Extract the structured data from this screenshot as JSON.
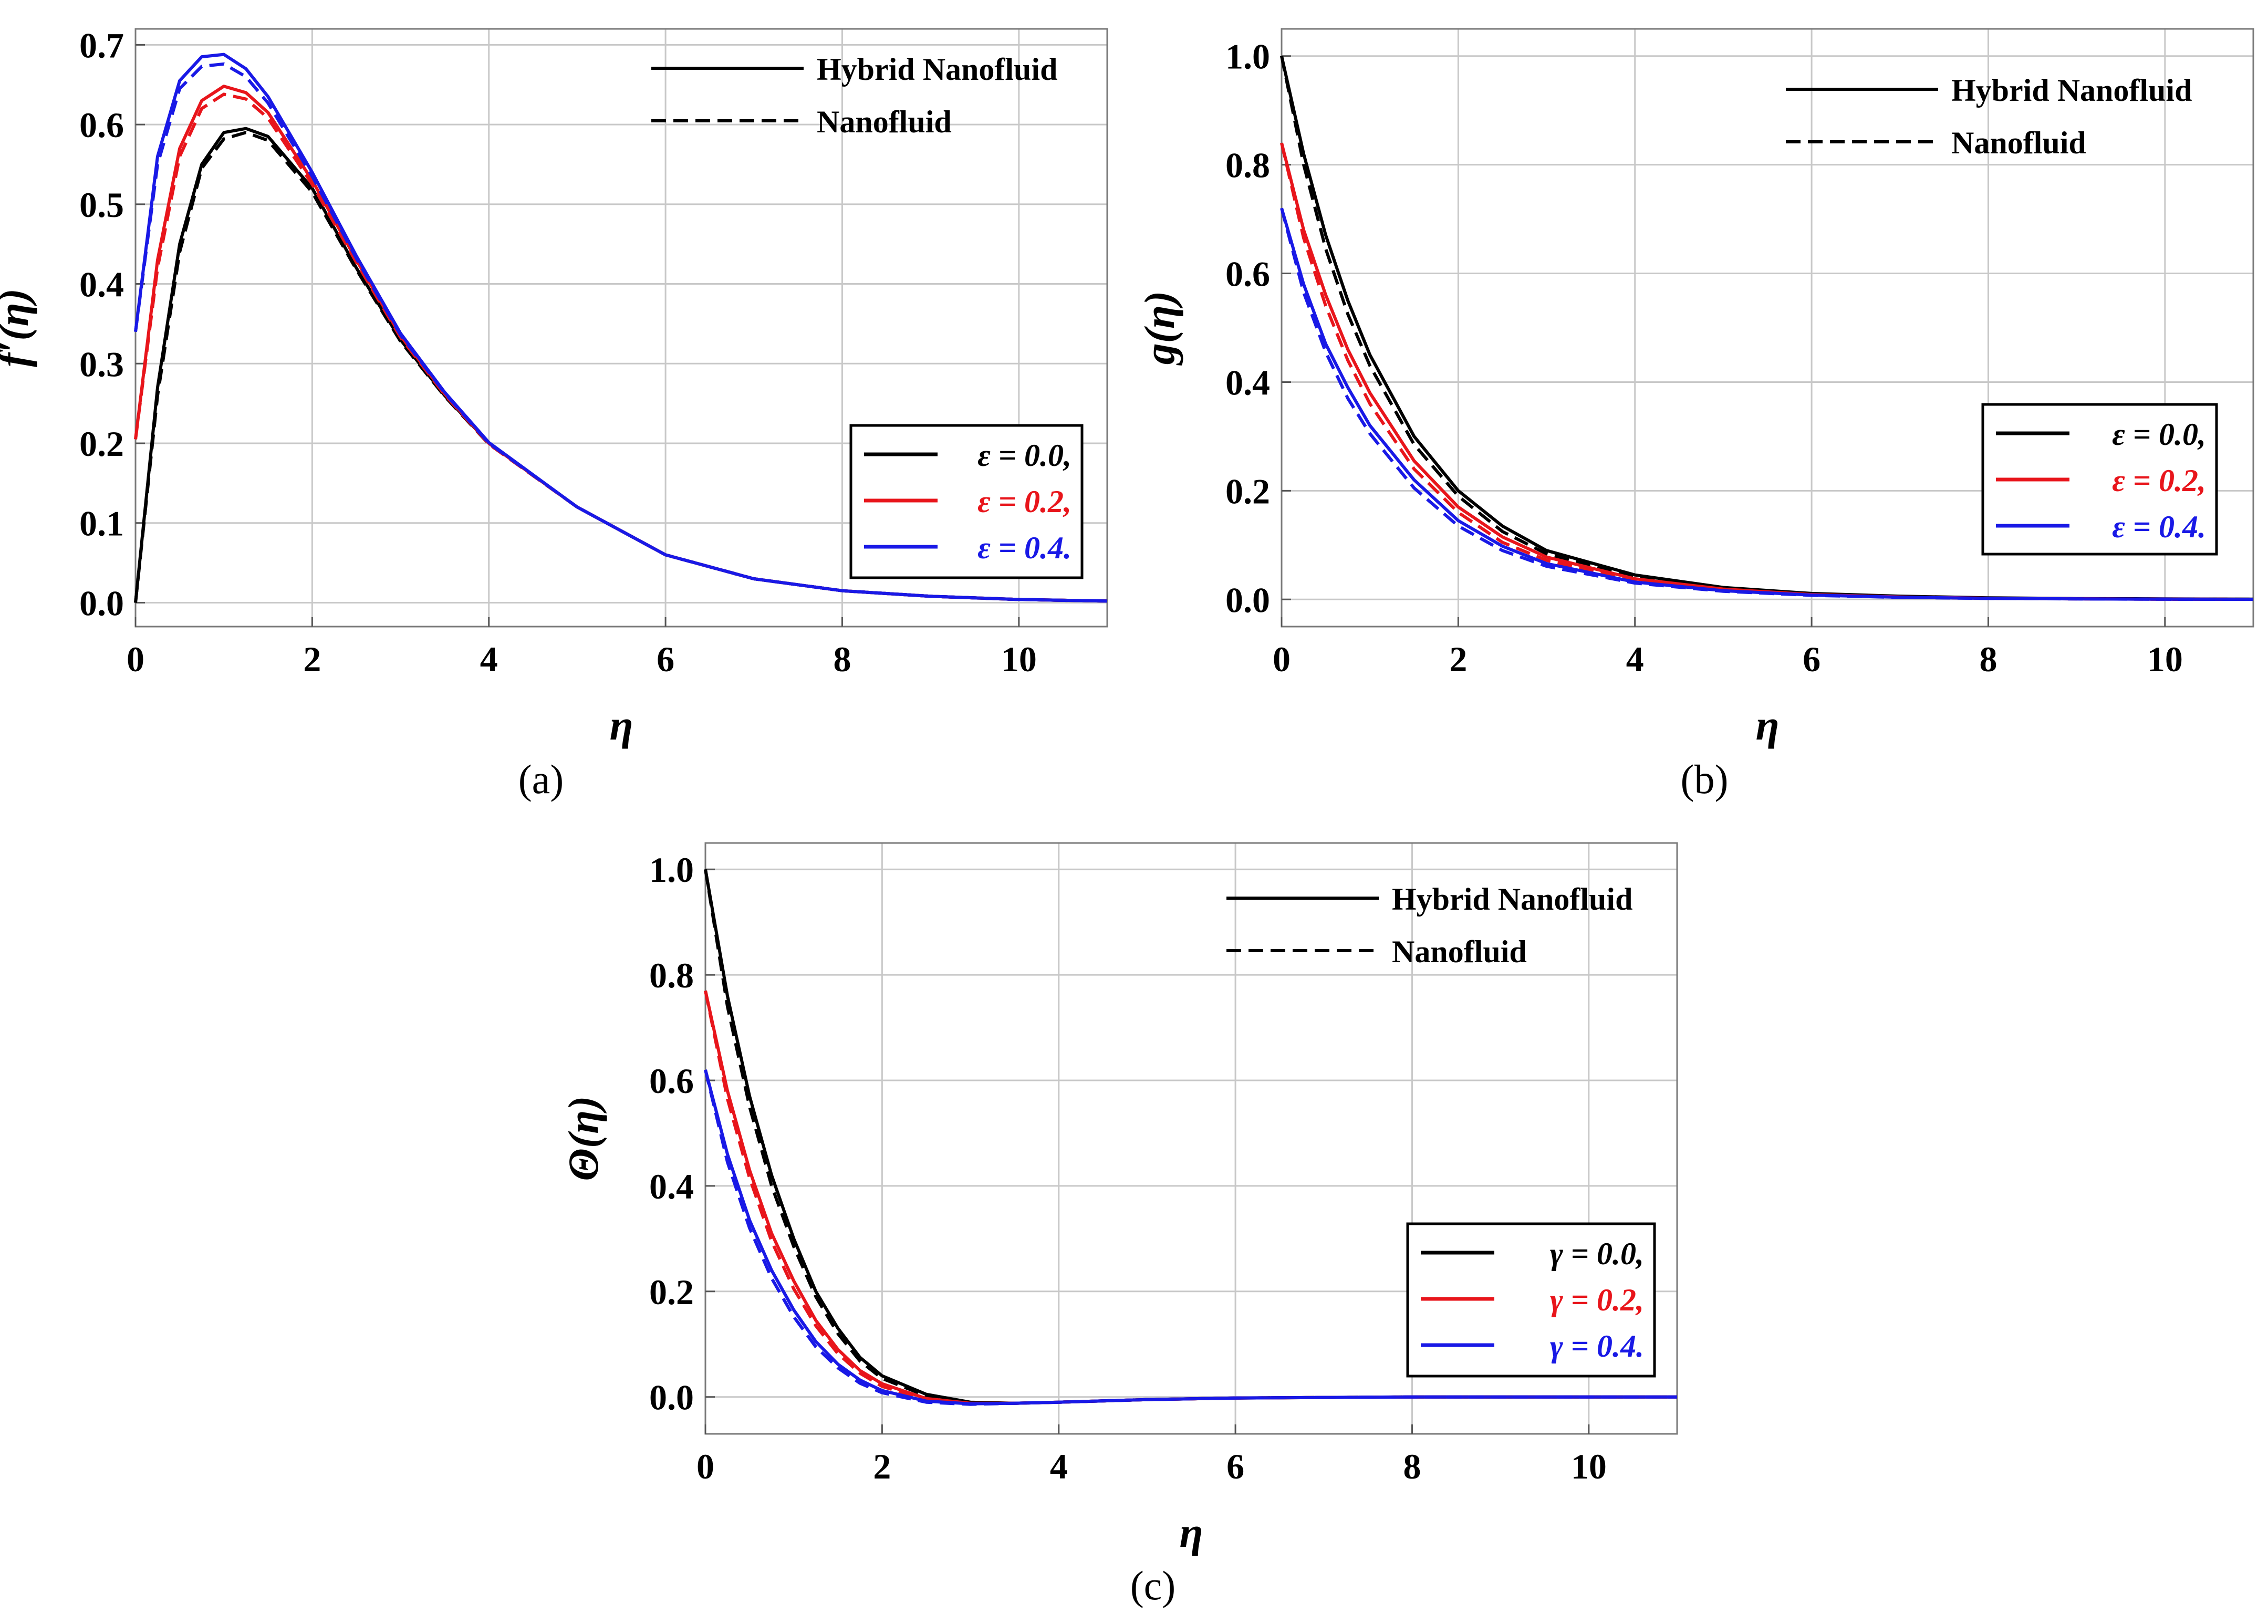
{
  "colors": {
    "black": "#000000",
    "red": "#e8151b",
    "blue": "#1919e6"
  },
  "chart_data": [
    {
      "type": "line",
      "panel": "(a)",
      "xlabel": "η",
      "ylabel": "f′(η)",
      "xlim": [
        0,
        11
      ],
      "ylim": [
        -0.03,
        0.72
      ],
      "xticks": [
        0,
        2,
        4,
        6,
        8,
        10
      ],
      "xtick_labels": [
        "0",
        "2",
        "4",
        "6",
        "8",
        "10"
      ],
      "yticks": [
        0.0,
        0.1,
        0.2,
        0.3,
        0.4,
        0.5,
        0.6,
        0.7
      ],
      "ytick_labels": [
        "0.0",
        "0.1",
        "0.2",
        "0.3",
        "0.4",
        "0.5",
        "0.6",
        "0.7"
      ],
      "style_legend": [
        {
          "label": "Hybrid Nanofluid",
          "dash": "solid"
        },
        {
          "label": "Nanofluid",
          "dash": "dashed"
        }
      ],
      "param_legend": [
        {
          "label": "ε = 0.0,",
          "color": "#000000"
        },
        {
          "label": "ε = 0.2,",
          "color": "#e8151b"
        },
        {
          "label": "ε = 0.4.",
          "color": "#1919e6"
        }
      ],
      "x": [
        0,
        0.25,
        0.5,
        0.75,
        1.0,
        1.25,
        1.5,
        2.0,
        2.5,
        3.0,
        3.5,
        4.0,
        5.0,
        6.0,
        7.0,
        8.0,
        9.0,
        10.0,
        11.0
      ],
      "series": [
        {
          "name": "ε = 0.0, Hybrid Nanofluid",
          "color": "#000000",
          "dash": "solid",
          "values": [
            0.0,
            0.27,
            0.45,
            0.55,
            0.59,
            0.595,
            0.585,
            0.52,
            0.42,
            0.33,
            0.26,
            0.2,
            0.12,
            0.06,
            0.03,
            0.015,
            0.008,
            0.004,
            0.002
          ]
        },
        {
          "name": "ε = 0.0, Nanofluid",
          "color": "#000000",
          "dash": "dashed",
          "values": [
            0.0,
            0.26,
            0.44,
            0.545,
            0.582,
            0.59,
            0.58,
            0.515,
            0.418,
            0.328,
            0.259,
            0.199,
            0.12,
            0.06,
            0.03,
            0.015,
            0.008,
            0.004,
            0.002
          ]
        },
        {
          "name": "ε = 0.2, Hybrid Nanofluid",
          "color": "#e8151b",
          "dash": "solid",
          "values": [
            0.205,
            0.43,
            0.57,
            0.63,
            0.648,
            0.64,
            0.615,
            0.53,
            0.43,
            0.335,
            0.262,
            0.2,
            0.12,
            0.06,
            0.03,
            0.015,
            0.008,
            0.004,
            0.002
          ]
        },
        {
          "name": "ε = 0.2, Nanofluid",
          "color": "#e8151b",
          "dash": "dashed",
          "values": [
            0.205,
            0.42,
            0.56,
            0.62,
            0.638,
            0.632,
            0.608,
            0.525,
            0.427,
            0.333,
            0.261,
            0.199,
            0.12,
            0.06,
            0.03,
            0.015,
            0.008,
            0.004,
            0.002
          ]
        },
        {
          "name": "ε = 0.4, Hybrid Nanofluid",
          "color": "#1919e6",
          "dash": "solid",
          "values": [
            0.34,
            0.56,
            0.655,
            0.685,
            0.688,
            0.67,
            0.635,
            0.54,
            0.435,
            0.338,
            0.264,
            0.201,
            0.12,
            0.06,
            0.03,
            0.015,
            0.008,
            0.004,
            0.002
          ]
        },
        {
          "name": "ε = 0.4, Nanofluid",
          "color": "#1919e6",
          "dash": "dashed",
          "values": [
            0.34,
            0.55,
            0.645,
            0.673,
            0.676,
            0.66,
            0.627,
            0.535,
            0.432,
            0.336,
            0.263,
            0.2,
            0.12,
            0.06,
            0.03,
            0.015,
            0.008,
            0.004,
            0.002
          ]
        }
      ]
    },
    {
      "type": "line",
      "panel": "(b)",
      "xlabel": "η",
      "ylabel": "g(η)",
      "xlim": [
        0,
        11
      ],
      "ylim": [
        -0.05,
        1.05
      ],
      "xticks": [
        0,
        2,
        4,
        6,
        8,
        10
      ],
      "xtick_labels": [
        "0",
        "2",
        "4",
        "6",
        "8",
        "10"
      ],
      "yticks": [
        0.0,
        0.2,
        0.4,
        0.6,
        0.8,
        1.0
      ],
      "ytick_labels": [
        "0.0",
        "0.2",
        "0.4",
        "0.6",
        "0.8",
        "1.0"
      ],
      "style_legend": [
        {
          "label": "Hybrid Nanofluid",
          "dash": "solid"
        },
        {
          "label": "Nanofluid",
          "dash": "dashed"
        }
      ],
      "param_legend": [
        {
          "label": "ε = 0.0,",
          "color": "#000000"
        },
        {
          "label": "ε = 0.2,",
          "color": "#e8151b"
        },
        {
          "label": "ε = 0.4.",
          "color": "#1919e6"
        }
      ],
      "x": [
        0,
        0.25,
        0.5,
        0.75,
        1.0,
        1.5,
        2.0,
        2.5,
        3.0,
        4.0,
        5.0,
        6.0,
        7.0,
        8.0,
        9.0,
        10.0,
        11.0
      ],
      "series": [
        {
          "name": "ε = 0.0, Hybrid Nanofluid",
          "color": "#000000",
          "dash": "solid",
          "values": [
            1.0,
            0.82,
            0.67,
            0.55,
            0.45,
            0.3,
            0.2,
            0.135,
            0.09,
            0.045,
            0.022,
            0.011,
            0.006,
            0.003,
            0.0015,
            0.001,
            0.0005
          ]
        },
        {
          "name": "ε = 0.0, Nanofluid",
          "color": "#000000",
          "dash": "dashed",
          "values": [
            1.0,
            0.8,
            0.645,
            0.525,
            0.43,
            0.285,
            0.19,
            0.125,
            0.084,
            0.04,
            0.02,
            0.01,
            0.005,
            0.0025,
            0.0013,
            0.0007,
            0.0004
          ]
        },
        {
          "name": "ε = 0.2, Hybrid Nanofluid",
          "color": "#e8151b",
          "dash": "solid",
          "values": [
            0.84,
            0.68,
            0.56,
            0.46,
            0.38,
            0.255,
            0.17,
            0.115,
            0.078,
            0.038,
            0.019,
            0.009,
            0.0045,
            0.0022,
            0.0011,
            0.0006,
            0.0003
          ]
        },
        {
          "name": "ε = 0.2, Nanofluid",
          "color": "#e8151b",
          "dash": "dashed",
          "values": [
            0.84,
            0.665,
            0.54,
            0.44,
            0.36,
            0.24,
            0.16,
            0.105,
            0.072,
            0.035,
            0.017,
            0.0085,
            0.0042,
            0.002,
            0.001,
            0.0005,
            0.0003
          ]
        },
        {
          "name": "ε = 0.4, Hybrid Nanofluid",
          "color": "#1919e6",
          "dash": "solid",
          "values": [
            0.72,
            0.58,
            0.47,
            0.39,
            0.32,
            0.22,
            0.145,
            0.098,
            0.066,
            0.032,
            0.016,
            0.008,
            0.004,
            0.002,
            0.001,
            0.0005,
            0.0003
          ]
        },
        {
          "name": "ε = 0.4, Nanofluid",
          "color": "#1919e6",
          "dash": "dashed",
          "values": [
            0.72,
            0.565,
            0.455,
            0.37,
            0.305,
            0.205,
            0.135,
            0.09,
            0.061,
            0.03,
            0.015,
            0.0075,
            0.0037,
            0.0018,
            0.0009,
            0.0005,
            0.0002
          ]
        }
      ]
    },
    {
      "type": "line",
      "panel": "(c)",
      "xlabel": "η",
      "ylabel": "Θ(η)",
      "xlim": [
        0,
        11
      ],
      "ylim": [
        -0.07,
        1.05
      ],
      "xticks": [
        0,
        2,
        4,
        6,
        8,
        10
      ],
      "xtick_labels": [
        "0",
        "2",
        "4",
        "6",
        "8",
        "10"
      ],
      "yticks": [
        0.0,
        0.2,
        0.4,
        0.6,
        0.8,
        1.0
      ],
      "ytick_labels": [
        "0.0",
        "0.2",
        "0.4",
        "0.6",
        "0.8",
        "1.0"
      ],
      "style_legend": [
        {
          "label": "Hybrid Nanofluid",
          "dash": "solid"
        },
        {
          "label": "Nanofluid",
          "dash": "dashed"
        }
      ],
      "param_legend": [
        {
          "label": "γ = 0.0,",
          "color": "#000000"
        },
        {
          "label": "γ = 0.2,",
          "color": "#e8151b"
        },
        {
          "label": "γ = 0.4.",
          "color": "#1919e6"
        }
      ],
      "x": [
        0,
        0.25,
        0.5,
        0.75,
        1.0,
        1.25,
        1.5,
        1.75,
        2.0,
        2.5,
        3.0,
        3.5,
        4.0,
        5.0,
        6.0,
        7.0,
        8.0,
        9.0,
        10.0,
        11.0
      ],
      "series": [
        {
          "name": "γ = 0.0, Hybrid Nanofluid",
          "color": "#000000",
          "dash": "solid",
          "values": [
            1.0,
            0.76,
            0.57,
            0.42,
            0.3,
            0.2,
            0.13,
            0.075,
            0.04,
            0.005,
            -0.01,
            -0.012,
            -0.01,
            -0.005,
            -0.002,
            -0.001,
            0.0,
            0.0,
            0.0,
            0.0
          ]
        },
        {
          "name": "γ = 0.0, Nanofluid",
          "color": "#000000",
          "dash": "dashed",
          "values": [
            1.0,
            0.74,
            0.55,
            0.4,
            0.285,
            0.19,
            0.12,
            0.068,
            0.035,
            0.002,
            -0.011,
            -0.012,
            -0.01,
            -0.005,
            -0.002,
            -0.001,
            0.0,
            0.0,
            0.0,
            0.0
          ]
        },
        {
          "name": "γ = 0.2, Hybrid Nanofluid",
          "color": "#e8151b",
          "dash": "solid",
          "values": [
            0.77,
            0.58,
            0.43,
            0.31,
            0.22,
            0.145,
            0.09,
            0.05,
            0.025,
            -0.003,
            -0.012,
            -0.012,
            -0.01,
            -0.005,
            -0.002,
            -0.001,
            0.0,
            0.0,
            0.0,
            0.0
          ]
        },
        {
          "name": "γ = 0.2, Nanofluid",
          "color": "#e8151b",
          "dash": "dashed",
          "values": [
            0.77,
            0.565,
            0.415,
            0.295,
            0.205,
            0.135,
            0.082,
            0.045,
            0.02,
            -0.005,
            -0.013,
            -0.012,
            -0.01,
            -0.005,
            -0.002,
            -0.001,
            0.0,
            0.0,
            0.0,
            0.0
          ]
        },
        {
          "name": "γ = 0.4, Hybrid Nanofluid",
          "color": "#1919e6",
          "dash": "solid",
          "values": [
            0.62,
            0.46,
            0.335,
            0.24,
            0.165,
            0.105,
            0.062,
            0.032,
            0.012,
            -0.008,
            -0.013,
            -0.012,
            -0.01,
            -0.005,
            -0.002,
            -0.001,
            0.0,
            0.0,
            0.0,
            0.0
          ]
        },
        {
          "name": "γ = 0.4, Nanofluid",
          "color": "#1919e6",
          "dash": "dashed",
          "values": [
            0.62,
            0.445,
            0.32,
            0.225,
            0.152,
            0.095,
            0.055,
            0.026,
            0.008,
            -0.01,
            -0.014,
            -0.012,
            -0.01,
            -0.005,
            -0.002,
            -0.001,
            0.0,
            0.0,
            0.0,
            0.0
          ]
        }
      ]
    }
  ]
}
